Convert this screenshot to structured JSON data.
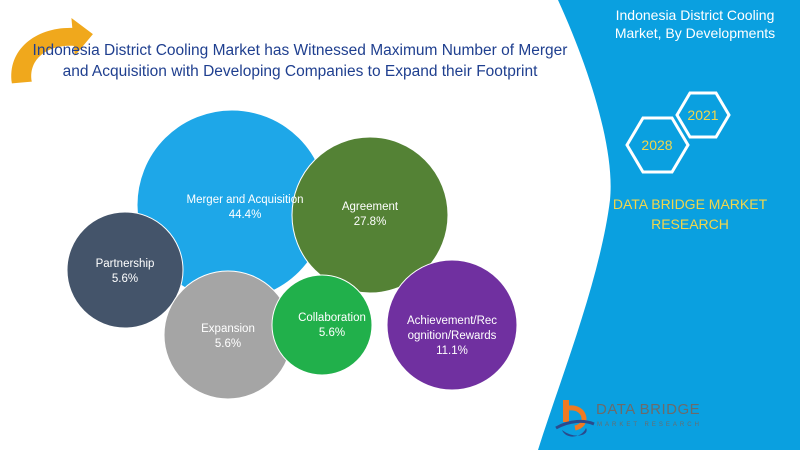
{
  "title": "Indonesia District Cooling Market has Witnessed Maximum Number of Merger and Acquisition with Developing Companies to Expand their Footprint",
  "side_panel": {
    "title": "Indonesia District Cooling Market, By Developments",
    "hex_years": [
      "2021",
      "2028"
    ],
    "brand_text": "DATA BRIDGE MARKET RESEARCH",
    "logo_name": "DATA BRIDGE",
    "logo_sub": "MARKET RESEARCH"
  },
  "colors": {
    "blue_panel": "#0aa0e0",
    "title": "#1f3f8f",
    "accent_yellow": "#f2d64b",
    "arrow": "#f0a81c"
  },
  "chart_data": {
    "type": "bubble",
    "title": "Indonesia District Cooling Market, By Developments",
    "categories": [
      "Merger and Acquisition",
      "Agreement",
      "Partnership",
      "Expansion",
      "Collaboration",
      "Achievement/Recognition/Rewards"
    ],
    "values": [
      44.4,
      27.8,
      5.6,
      5.6,
      5.6,
      11.1
    ],
    "labels": [
      {
        "name": "Merger and Acquisition",
        "value": "44.4%"
      },
      {
        "name": "Agreement",
        "value": "27.8%"
      },
      {
        "name": "Partnership",
        "value": "5.6%"
      },
      {
        "name": "Expansion",
        "value": "5.6%"
      },
      {
        "name": "Collaboration",
        "value": "5.6%"
      },
      {
        "name": "Achievement/Rec ognition/Rewards",
        "value": "11.1%"
      }
    ],
    "colors": [
      "#1ea7e8",
      "#548235",
      "#44546a",
      "#a5a5a5",
      "#21b04b",
      "#7030a0"
    ]
  }
}
